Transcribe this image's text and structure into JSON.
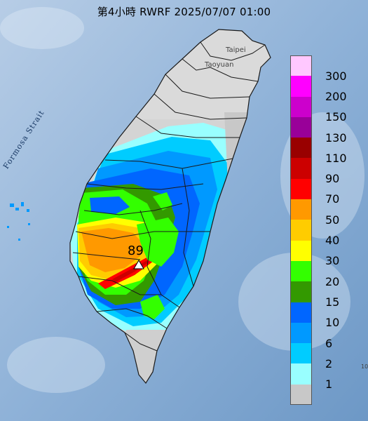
{
  "title": "第4小時  RWRF 2025/07/07 01:00",
  "labels": {
    "strait": "Formosa Strait",
    "taipei": "Taipei",
    "taoyuan": "Taoyuan",
    "peak_value": "89",
    "edge_tick": "10"
  },
  "legend": {
    "items": [
      {
        "label": "300",
        "color": "#ffc8ff"
      },
      {
        "label": "200",
        "color": "#ff00ff"
      },
      {
        "label": "150",
        "color": "#cc00cc"
      },
      {
        "label": "130",
        "color": "#990099"
      },
      {
        "label": "110",
        "color": "#990000"
      },
      {
        "label": "90",
        "color": "#cc0000"
      },
      {
        "label": "70",
        "color": "#ff0000"
      },
      {
        "label": "50",
        "color": "#ff9900"
      },
      {
        "label": "40",
        "color": "#ffcc00"
      },
      {
        "label": "30",
        "color": "#ffff00"
      },
      {
        "label": "20",
        "color": "#33ff00"
      },
      {
        "label": "15",
        "color": "#339900"
      },
      {
        "label": "10",
        "color": "#0066ff"
      },
      {
        "label": "6",
        "color": "#0099ff"
      },
      {
        "label": "2",
        "color": "#00ccff"
      },
      {
        "label": "1",
        "color": "#99ffff"
      },
      {
        "label": "",
        "color": "#c8c8c8"
      }
    ]
  },
  "colors": {
    "sea": "#7fa8d0",
    "land": "#d8d8d8",
    "border": "#1a1a1a"
  }
}
